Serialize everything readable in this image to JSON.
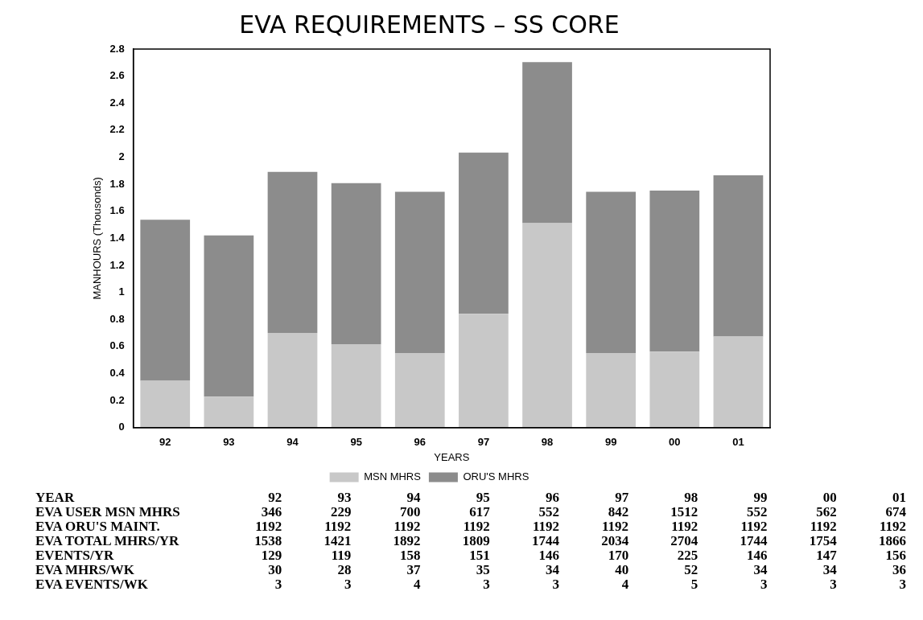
{
  "chart_data": {
    "type": "bar",
    "title": "EVA REQUIREMENTS – SS CORE",
    "xlabel": "YEARS",
    "ylabel": "MANHOURS (Thousonds)",
    "categories": [
      "92",
      "93",
      "94",
      "95",
      "96",
      "97",
      "98",
      "99",
      "00",
      "01"
    ],
    "stacked": true,
    "series": [
      {
        "name": "MSN MHRS",
        "color": "#c8c8c8",
        "values": [
          0.346,
          0.229,
          0.7,
          0.617,
          0.552,
          0.842,
          1.512,
          0.552,
          0.562,
          0.674
        ]
      },
      {
        "name": "ORU'S MHRS",
        "color": "#8c8c8c",
        "values": [
          1.192,
          1.192,
          1.192,
          1.192,
          1.192,
          1.192,
          1.192,
          1.192,
          1.192,
          1.192
        ]
      }
    ],
    "ylim": [
      0,
      2.8
    ],
    "yticks": [
      0,
      0.2,
      0.4,
      0.6,
      0.8,
      1,
      1.2,
      1.4,
      1.6,
      1.8,
      2,
      2.2,
      2.4,
      2.6,
      2.8
    ],
    "grid": false,
    "legend": "bottom",
    "annotations": [
      "YEAR  92  93  94  95  96  97  98  99  00  01",
      "EVA USER MSN MHRS  346  229  700  617  552  842  1512  552  562  674",
      "EVA ORU'S MAINT.  1192  1192  1192  1192  1192  1192  1192  1192  1192  1192",
      "EVA TOTAL MHRS/YR  1538  1421  1892  1809  1744  2034  2704  1744  1754  1866",
      "EVENTS/YR  129  119  158  151  146  170  225  146  147  156",
      "EVA MHRS/WK  30  28  37  35  34  40  52  34  34  36",
      "EVA EVENTS/WK  3  3  4  3  3  4  5  3  3  3"
    ]
  }
}
